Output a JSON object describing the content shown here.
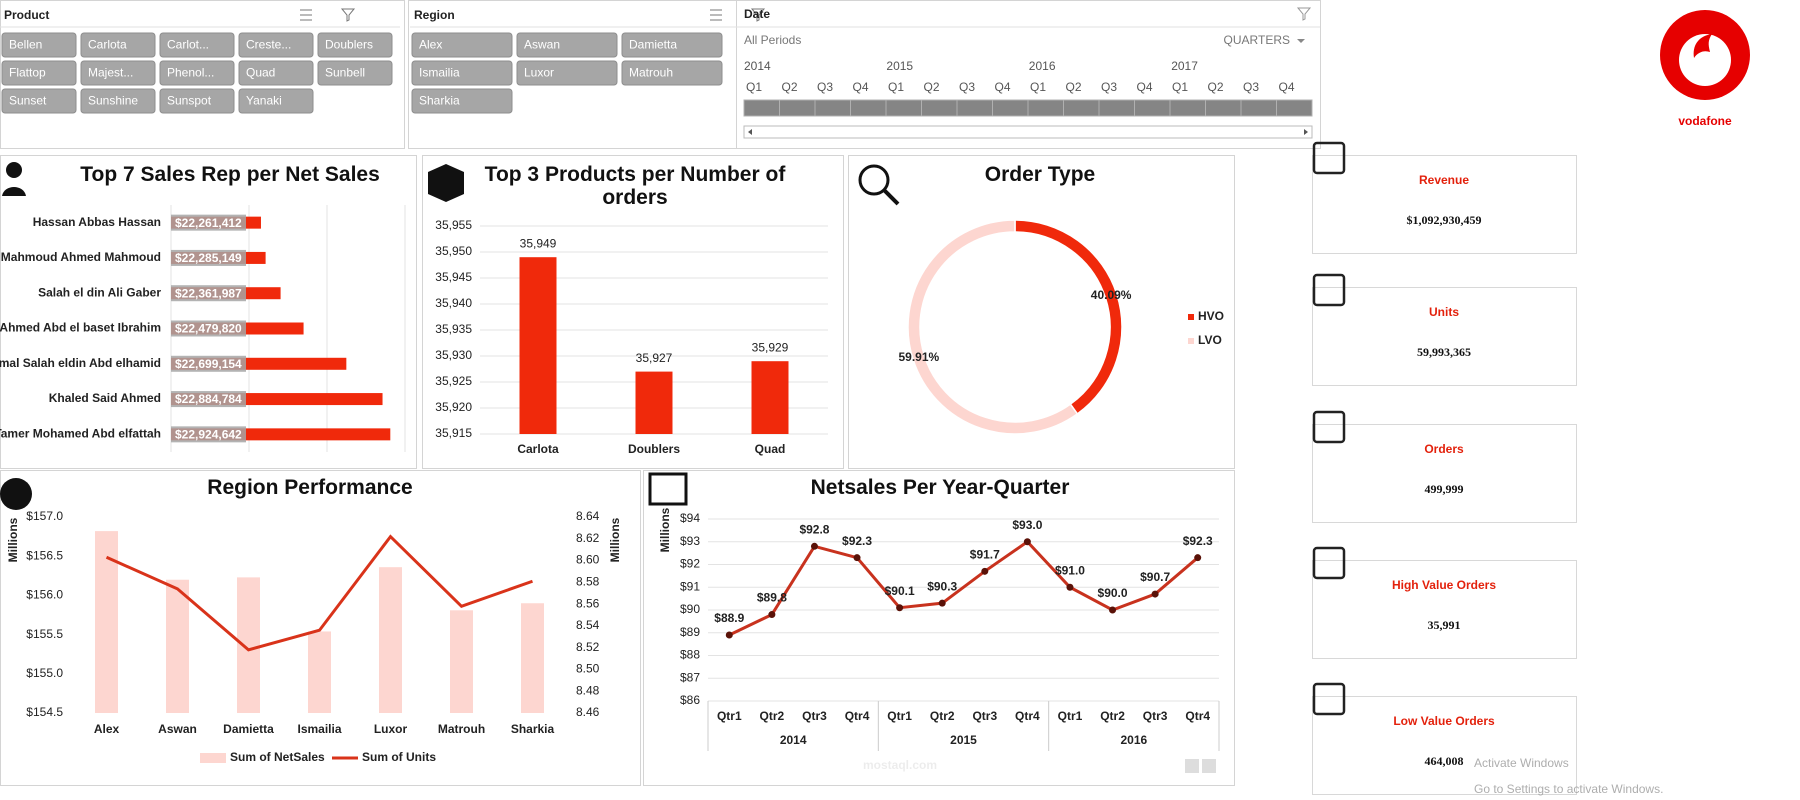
{
  "slicers": {
    "product": {
      "title": "Product",
      "items": [
        "Bellen",
        "Carlota",
        "Carlot...",
        "Creste...",
        "Doublers",
        "Flattop",
        "Majest...",
        "Phenol...",
        "Quad",
        "Sunbell",
        "Sunset",
        "Sunshine",
        "Sunspot",
        "Yanaki"
      ]
    },
    "region": {
      "title": "Region",
      "items": [
        "Alex",
        "Aswan",
        "Damietta",
        "Ismailia",
        "Luxor",
        "Matrouh",
        "Sharkia"
      ]
    },
    "date": {
      "title": "Date",
      "periods": "All Periods",
      "level": "QUARTERS",
      "years": [
        "2014",
        "2015",
        "2016",
        "2017"
      ],
      "quarters": [
        "Q1",
        "Q2",
        "Q3",
        "Q4"
      ]
    }
  },
  "logo": {
    "text": "vodafone"
  },
  "kpis": [
    {
      "label": "Revenue",
      "value": "$1,092,930,459"
    },
    {
      "label": "Units",
      "value": "59,993,365"
    },
    {
      "label": "Orders",
      "value": "499,999"
    },
    {
      "label": "High Value Orders",
      "value": "35,991"
    },
    {
      "label": "Low Value Orders",
      "value": "464,008"
    }
  ],
  "watermarks": {
    "activate": "Activate Windows",
    "settings": "Go to Settings to activate Windows.",
    "site": "mostaql.com"
  },
  "chart_data": [
    {
      "type": "bar",
      "orientation": "horizontal",
      "title": "Top 7 Sales Rep per Net Sales",
      "categories": [
        "Hassan Abbas Hassan",
        "Mahmoud Ahmed Mahmoud",
        "Salah el din Ali Gaber",
        "Ahmed Abd el baset Ibrahim",
        "Gamal Salah eldin Abd elhamid",
        "Khaled Said Ahmed",
        "Tamer Mohamed Abd elfattah"
      ],
      "values": [
        22261412,
        22285149,
        22361987,
        22479820,
        22699154,
        22884784,
        22924642
      ],
      "value_labels": [
        "$22,261,412",
        "$22,285,149",
        "$22,361,987",
        "$22,479,820",
        "$22,699,154",
        "$22,884,784",
        "$22,924,642"
      ],
      "color": "#f0290b",
      "xlim": [
        21800000,
        23000000
      ],
      "xticks": [
        21800000,
        22200000,
        22600000,
        23000000
      ],
      "tick_labels": false,
      "grid": true
    },
    {
      "type": "bar",
      "title": "Top 3 Products per Number of orders",
      "categories": [
        "Carlota",
        "Doublers",
        "Quad"
      ],
      "values": [
        35949,
        35927,
        35929
      ],
      "value_labels": [
        "35,949",
        "35,927",
        "35,929"
      ],
      "color": "#f0290b",
      "ylim": [
        35915,
        35955
      ],
      "yticks": [
        {
          "value": 35915,
          "label": "35,915"
        },
        {
          "value": 35920,
          "label": "35,920"
        },
        {
          "value": 35925,
          "label": "35,925"
        },
        {
          "value": 35930,
          "label": "35,930"
        },
        {
          "value": 35935,
          "label": "35,935"
        },
        {
          "value": 35940,
          "label": "35,940"
        },
        {
          "value": 35945,
          "label": "35,945"
        },
        {
          "value": 35950,
          "label": "35,950"
        },
        {
          "value": 35955,
          "label": "35,955"
        }
      ],
      "grid": true
    },
    {
      "type": "pie",
      "donut": true,
      "title": "Order Type",
      "categories": [
        "HVO",
        "LVO"
      ],
      "values": [
        40.09,
        59.91
      ],
      "value_labels": [
        "40.09%",
        "59.91%"
      ],
      "colors": [
        "#f0290b",
        "#fdd6d0"
      ],
      "legend": "right"
    },
    {
      "type": "bar",
      "title": "Region Performance",
      "categories": [
        "Alex",
        "Aswan",
        "Damietta",
        "Ismailia",
        "Luxor",
        "Matrouh",
        "Sharkia"
      ],
      "y_label": "Millions",
      "y2_label": "Millions",
      "series": [
        {
          "name": "Sum of NetSales",
          "type": "bar",
          "color": "#fdd6d0",
          "values": [
            156.82,
            156.2,
            156.23,
            155.54,
            156.36,
            155.81,
            155.9
          ]
        },
        {
          "name": "Sum of Units",
          "type": "line",
          "axis": "y2",
          "color": "#d9331a",
          "values": [
            8.603,
            8.574,
            8.518,
            8.536,
            8.622,
            8.558,
            8.581
          ]
        }
      ],
      "ylim": [
        154.5,
        157
      ],
      "yticks": [
        {
          "value": 154.5,
          "label": "$154.5"
        },
        {
          "value": 155,
          "label": "$155.0"
        },
        {
          "value": 155.5,
          "label": "$155.5"
        },
        {
          "value": 156,
          "label": "$156.0"
        },
        {
          "value": 156.5,
          "label": "$156.5"
        },
        {
          "value": 157,
          "label": "$157.0"
        }
      ],
      "y2lim": [
        8.46,
        8.64
      ],
      "y2ticks": [
        8.46,
        8.48,
        {
          "value": 8.5,
          "label": "8.50"
        },
        8.52,
        8.54,
        8.56,
        8.58,
        {
          "value": 8.6,
          "label": "8.60"
        },
        8.62,
        8.64
      ],
      "legend": "bottom"
    },
    {
      "type": "line",
      "title": "Netsales Per Year-Quarter",
      "categories": [
        "Qtr1",
        "Qtr2",
        "Qtr3",
        "Qtr4",
        "Qtr1",
        "Qtr2",
        "Qtr3",
        "Qtr4",
        "Qtr1",
        "Qtr2",
        "Qtr3",
        "Qtr4"
      ],
      "category_groups": [
        "2014",
        "2015",
        "2016"
      ],
      "y_label": "Millions",
      "values": [
        88.9,
        89.8,
        92.8,
        92.3,
        90.1,
        90.3,
        91.7,
        93.0,
        91.0,
        90.0,
        90.7,
        92.3
      ],
      "value_labels": [
        "$88.9",
        "$89.8",
        "$92.8",
        "$92.3",
        "$90.1",
        "$90.3",
        "$91.7",
        "$93.0",
        "$91.0",
        "$90.0",
        "$90.7",
        "$92.3"
      ],
      "color": "#c8321e",
      "marker_color": "#5a1208",
      "ylim": [
        86,
        94
      ],
      "yticks": [
        {
          "value": 86,
          "label": "$86"
        },
        {
          "value": 87,
          "label": "$87"
        },
        {
          "value": 88,
          "label": "$88"
        },
        {
          "value": 89,
          "label": "$89"
        },
        {
          "value": 90,
          "label": "$90"
        },
        {
          "value": 91,
          "label": "$91"
        },
        {
          "value": 92,
          "label": "$92"
        },
        {
          "value": 93,
          "label": "$93"
        },
        {
          "value": 94,
          "label": "$94"
        }
      ],
      "grid": true
    }
  ]
}
